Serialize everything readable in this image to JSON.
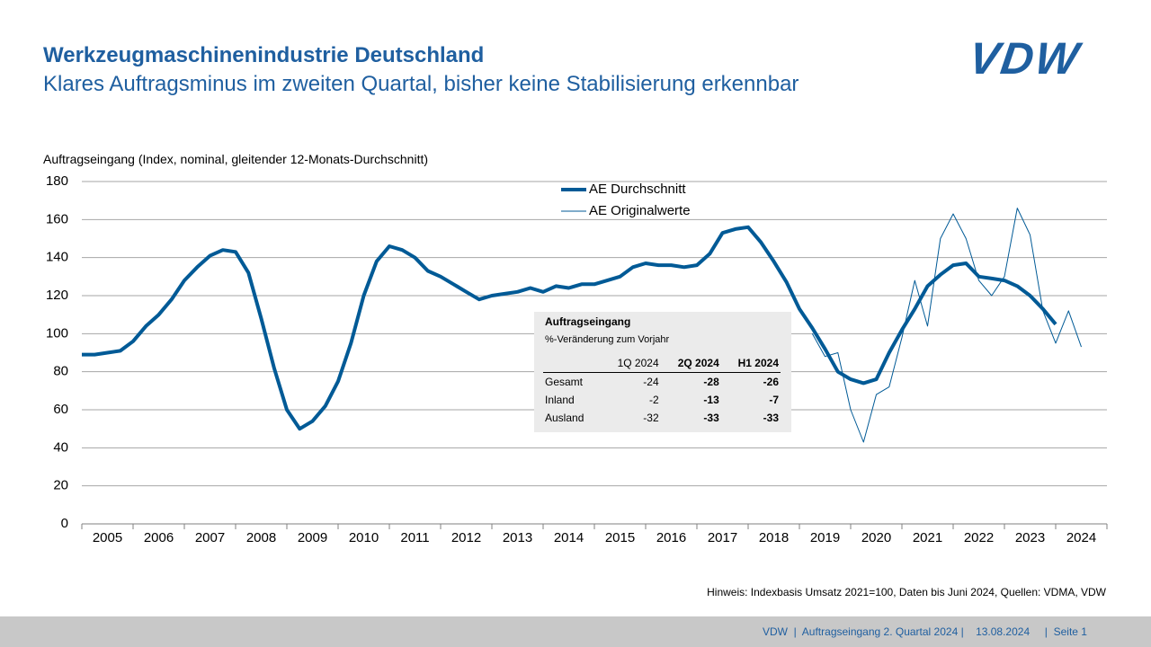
{
  "header": {
    "title": "Werkzeugmaschinenindustrie Deutschland",
    "subtitle": "Klares Auftragsminus im zweiten Quartal, bisher keine Stabilisierung erkennbar",
    "logo": "VDW"
  },
  "chart_data": {
    "type": "line",
    "y_label": "Auftragseingang (Index, nominal, gleitender 12-Monats-Durchschnitt)",
    "x": [
      2005,
      2005.25,
      2005.5,
      2005.75,
      2006,
      2006.25,
      2006.5,
      2006.75,
      2007,
      2007.25,
      2007.5,
      2007.75,
      2008,
      2008.25,
      2008.5,
      2008.75,
      2009,
      2009.25,
      2009.5,
      2009.75,
      2010,
      2010.25,
      2010.5,
      2010.75,
      2011,
      2011.25,
      2011.5,
      2011.75,
      2012,
      2012.25,
      2012.5,
      2012.75,
      2013,
      2013.25,
      2013.5,
      2013.75,
      2014,
      2014.25,
      2014.5,
      2014.75,
      2015,
      2015.25,
      2015.5,
      2015.75,
      2016,
      2016.25,
      2016.5,
      2016.75,
      2017,
      2017.25,
      2017.5,
      2017.75,
      2018,
      2018.25,
      2018.5,
      2018.75,
      2019,
      2019.25,
      2019.5,
      2019.75,
      2020,
      2020.25,
      2020.5,
      2020.75,
      2021,
      2021.25,
      2021.5,
      2021.75,
      2022,
      2022.25,
      2022.5,
      2022.75,
      2023,
      2023.25,
      2023.5,
      2023.75,
      2024,
      2024.25,
      2024.5
    ],
    "series": [
      {
        "name": "AE Durchschnitt",
        "color": "#005a96",
        "width": 4,
        "values": [
          89,
          89,
          90,
          91,
          96,
          104,
          110,
          118,
          128,
          135,
          141,
          144,
          143,
          132,
          108,
          82,
          60,
          50,
          54,
          62,
          75,
          95,
          120,
          138,
          146,
          144,
          140,
          133,
          130,
          126,
          122,
          118,
          120,
          121,
          122,
          124,
          122,
          125,
          124,
          126,
          126,
          128,
          130,
          135,
          137,
          136,
          136,
          135,
          136,
          142,
          153,
          155,
          156,
          148,
          138,
          127,
          113,
          103,
          92,
          80,
          76,
          74,
          76,
          90,
          102,
          113,
          125,
          131,
          136,
          137,
          130,
          129,
          128,
          125,
          120,
          113,
          105,
          null,
          null
        ]
      },
      {
        "name": "AE Originalwerte",
        "color": "#005a96",
        "width": 1,
        "values": [
          null,
          null,
          null,
          null,
          null,
          null,
          null,
          null,
          null,
          null,
          null,
          null,
          null,
          null,
          null,
          null,
          null,
          null,
          null,
          null,
          null,
          null,
          null,
          null,
          null,
          null,
          null,
          null,
          null,
          null,
          null,
          null,
          null,
          null,
          null,
          null,
          null,
          null,
          null,
          null,
          null,
          null,
          null,
          null,
          null,
          null,
          null,
          null,
          null,
          null,
          null,
          null,
          null,
          null,
          null,
          null,
          null,
          100,
          88,
          90,
          60,
          43,
          68,
          72,
          98,
          128,
          104,
          150,
          163,
          150,
          128,
          120,
          130,
          166,
          152,
          112,
          95,
          112,
          93
        ]
      }
    ],
    "xlim": [
      2005,
      2025
    ],
    "xticks": [
      2005,
      2006,
      2007,
      2008,
      2009,
      2010,
      2011,
      2012,
      2013,
      2014,
      2015,
      2016,
      2017,
      2018,
      2019,
      2020,
      2021,
      2022,
      2023,
      2024
    ],
    "ylim": [
      0,
      180
    ],
    "yticks": [
      0,
      20,
      40,
      60,
      80,
      100,
      120,
      140,
      160,
      180
    ],
    "grid": true,
    "legend": "top"
  },
  "table": {
    "title": "Auftragseingang",
    "subtitle": "%-Veränderung zum Vorjahr",
    "columns": [
      "1Q 2024",
      "2Q 2024",
      "H1 2024"
    ],
    "rows": [
      [
        "Gesamt",
        -24,
        -28,
        -26
      ],
      [
        "Inland",
        -2,
        -13,
        -7
      ],
      [
        "Ausland",
        -32,
        -33,
        -33
      ]
    ]
  },
  "note": "Hinweis: Indexbasis Umsatz 2021=100, Daten bis Juni 2024, Quellen: VDMA, VDW",
  "footer": [
    "VDW",
    "Auftragseingang 2. Quartal 2024",
    "13.08.2024",
    "Seite 1"
  ]
}
